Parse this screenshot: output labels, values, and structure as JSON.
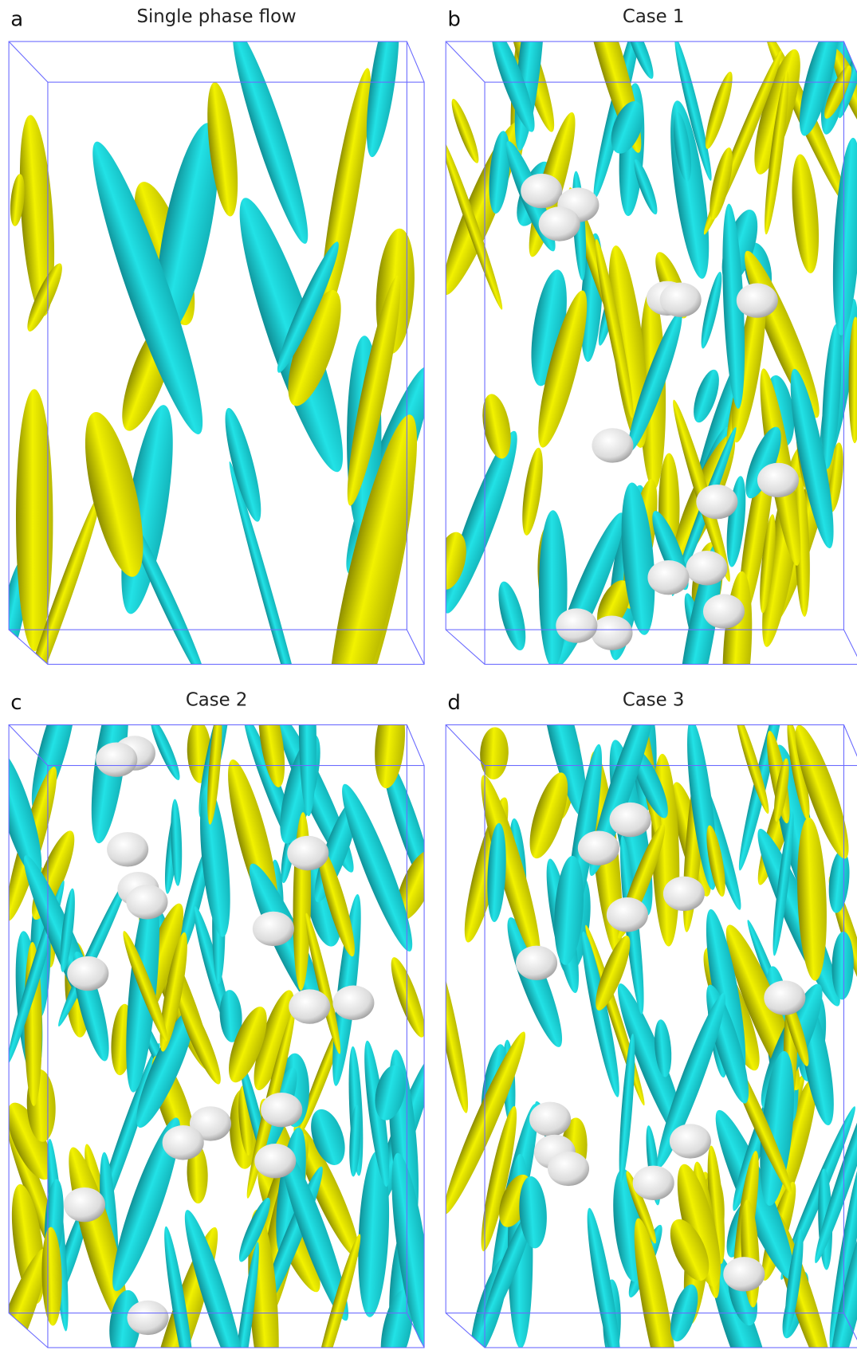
{
  "panels": [
    {
      "label": "a",
      "title": "Single phase flow"
    },
    {
      "label": "b",
      "title": "Case 1"
    },
    {
      "label": "c",
      "title": "Case 2"
    },
    {
      "label": "d",
      "title": "Case 3"
    }
  ]
}
